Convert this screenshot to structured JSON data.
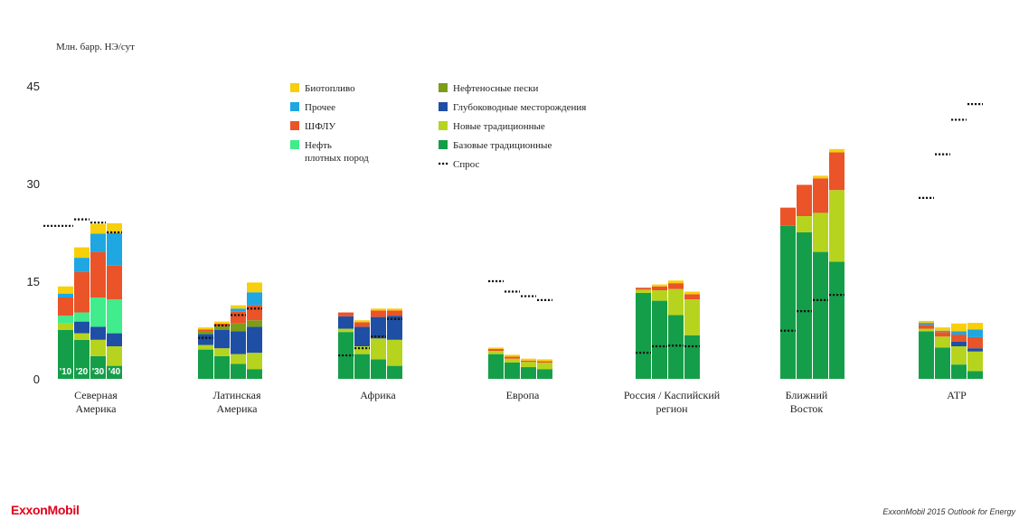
{
  "chart_data": {
    "type": "bar",
    "stacked": true,
    "ylabel": "Млн. барр. НЭ/сут",
    "ylim": [
      0,
      47
    ],
    "yticks": [
      "0",
      "15",
      "30",
      "45"
    ],
    "years": [
      "'10",
      "'20",
      "'30",
      "'40"
    ],
    "regions": [
      {
        "name": "Северная Америка",
        "lines": [
          "Северная",
          "Америка"
        ],
        "demand": [
          23.5,
          24.5,
          24,
          22.5
        ],
        "bars": [
          [
            7.5,
            1,
            0,
            0,
            1.2,
            2.8,
            0.6,
            1.1
          ],
          [
            6,
            1,
            1.8,
            0,
            1.4,
            6.2,
            2.2,
            1.6
          ],
          [
            3.5,
            2.5,
            2,
            0,
            4.5,
            7,
            2.8,
            1.5
          ],
          [
            2,
            3,
            2,
            0,
            5.2,
            5.2,
            5,
            1.5
          ]
        ]
      },
      {
        "name": "Латинская Америка",
        "lines": [
          "Латинская",
          "Америка"
        ],
        "demand": [
          6.3,
          8.2,
          9.8,
          10.8
        ],
        "bars": [
          [
            4.5,
            0.7,
            1.7,
            0.4,
            0,
            0.3,
            0,
            0.3
          ],
          [
            3.5,
            1.2,
            2.8,
            0.6,
            0,
            0.4,
            0,
            0.3
          ],
          [
            2.3,
            1.5,
            3.5,
            1.2,
            0,
            1.8,
            0.5,
            0.5
          ],
          [
            1.5,
            2.5,
            4,
            1,
            0,
            2.3,
            2,
            1.5
          ]
        ]
      },
      {
        "name": "Африка",
        "lines": [
          "Африка"
        ],
        "demand": [
          3.6,
          4.7,
          6.5,
          9.2
        ],
        "bars": [
          [
            7.2,
            0.5,
            1.9,
            0,
            0,
            0.6,
            0,
            0
          ],
          [
            3.8,
            1.2,
            3,
            0,
            0,
            0.7,
            0,
            0.3
          ],
          [
            3,
            3.2,
            3.3,
            0,
            0,
            1,
            0,
            0.3
          ],
          [
            2,
            4,
            3.7,
            0,
            0,
            0.8,
            0,
            0.3
          ]
        ]
      },
      {
        "name": "Европа",
        "lines": [
          "Европа"
        ],
        "demand": [
          15,
          13.4,
          12.7,
          12.1
        ],
        "bars": [
          [
            3.8,
            0.5,
            0,
            0,
            0,
            0.3,
            0,
            0.2
          ],
          [
            2.5,
            0.6,
            0,
            0,
            0,
            0.3,
            0,
            0.3
          ],
          [
            1.8,
            0.8,
            0,
            0,
            0,
            0.2,
            0,
            0.3
          ],
          [
            1.5,
            1,
            0,
            0,
            0,
            0.2,
            0,
            0.3
          ]
        ]
      },
      {
        "name": "Россия / Каспийский регион",
        "lines": [
          "Россия / Каспийский",
          "регион"
        ],
        "demand": [
          4,
          5,
          5.1,
          5
        ],
        "bars": [
          [
            13.2,
            0.5,
            0,
            0,
            0,
            0.3,
            0,
            0
          ],
          [
            12,
            1.6,
            0,
            0,
            0,
            0.6,
            0,
            0.3
          ],
          [
            9.8,
            4,
            0,
            0,
            0,
            0.9,
            0,
            0.4
          ],
          [
            6.7,
            5.5,
            0,
            0,
            0,
            0.8,
            0,
            0.4
          ]
        ]
      },
      {
        "name": "Ближний Восток",
        "lines": [
          "Ближний",
          "Восток"
        ],
        "demand": [
          7.4,
          10.4,
          12.1,
          12.9
        ],
        "bars": [
          [
            23.5,
            0,
            0,
            0,
            0,
            2.8,
            0,
            0
          ],
          [
            22.5,
            2.5,
            0,
            0,
            0,
            4.8,
            0,
            0
          ],
          [
            19.5,
            6,
            0,
            0,
            0,
            5.3,
            0,
            0.4
          ],
          [
            18,
            11,
            0,
            0,
            0,
            5.8,
            0,
            0.5
          ]
        ]
      },
      {
        "name": "АТР",
        "lines": [
          "АТР"
        ],
        "demand": [
          27.8,
          34.5,
          39.8,
          42.2
        ],
        "bars": [
          [
            7.3,
            0.4,
            0,
            0,
            0,
            0.6,
            0.3,
            0.3
          ],
          [
            4.8,
            1.7,
            0,
            0,
            0,
            0.7,
            0.2,
            0.5
          ],
          [
            2.2,
            2.8,
            0.7,
            0,
            0,
            1.1,
            0.5,
            1.2
          ],
          [
            1.2,
            3,
            0.5,
            0,
            0,
            1.7,
            1.2,
            1
          ]
        ]
      }
    ],
    "segments": [
      {
        "name": "Базовые традиционные",
        "color": "#159e49"
      },
      {
        "name": "Новые традиционные",
        "color": "#b6d41e"
      },
      {
        "name": "Глубоководные месторождения",
        "color": "#1e4fa4"
      },
      {
        "name": "Нефтеносные пески",
        "color": "#7b9d17"
      },
      {
        "name": "Нефть плотных пород",
        "color": "#40ec8c"
      },
      {
        "name": "ШФЛУ",
        "color": "#ea5428"
      },
      {
        "name": "Прочее",
        "color": "#1ea7e1"
      },
      {
        "name": "Биотопливо",
        "color": "#f7cf0a"
      }
    ],
    "demand_series": {
      "name": "Спрос",
      "color": "#111111"
    },
    "legend": {
      "position": "top-center",
      "col1": [
        {
          "seg": 7,
          "lines": [
            "Биотопливо"
          ]
        },
        {
          "seg": 6,
          "lines": [
            "Прочее"
          ]
        },
        {
          "seg": 5,
          "lines": [
            "ШФЛУ"
          ]
        },
        {
          "seg": 4,
          "lines": [
            "Нефть",
            "плотных пород"
          ]
        }
      ],
      "col2": [
        {
          "seg": 3,
          "lines": [
            "Нефтеносные пески"
          ]
        },
        {
          "seg": 2,
          "lines": [
            "Глубоководные месторождения"
          ]
        },
        {
          "seg": 1,
          "lines": [
            "Новые традиционные"
          ]
        },
        {
          "seg": 0,
          "lines": [
            "Базовые традиционные"
          ]
        },
        {
          "demand": true,
          "lines": [
            "Спрос"
          ]
        }
      ]
    }
  },
  "footer": {
    "brand": "ExxonMobil",
    "brand_color": "#e2001a",
    "source": "ExxonMobil 2015 Outlook for Energy"
  }
}
